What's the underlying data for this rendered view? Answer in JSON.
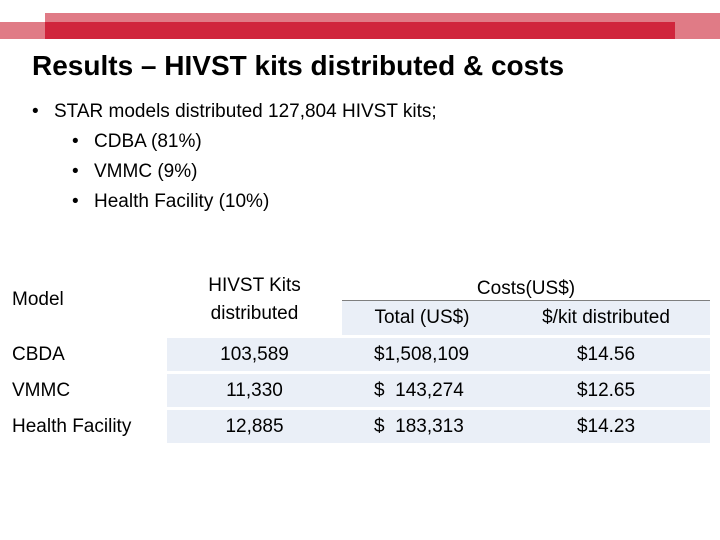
{
  "colors": {
    "accent_red": "#d0253c",
    "accent_pink": "#e07b86",
    "table_shade": "#eaeff7"
  },
  "slide": {
    "title": "Results – HIVST kits distributed & costs",
    "bullet_main": "STAR models distributed 127,804 HIVST kits;",
    "sub_bullets": [
      "CDBA (81%)",
      "VMMC (9%)",
      "Health Facility (10%)"
    ]
  },
  "table": {
    "headers": {
      "model": "Model",
      "kits_line1": "HIVST Kits",
      "kits_line2": "distributed",
      "costs": "Costs(US$)",
      "total": "Total (US$)",
      "per_kit": "$/kit distributed"
    },
    "rows": [
      {
        "model": "CBDA",
        "kits": "103,589",
        "total": "$1,508,109",
        "per_kit": "$14.56"
      },
      {
        "model": "VMMC",
        "kits": "11,330",
        "total": "$  143,274",
        "per_kit": "$12.65"
      },
      {
        "model": "Health Facility",
        "kits": "12,885",
        "total": "$  183,313",
        "per_kit": "$14.23"
      }
    ]
  }
}
